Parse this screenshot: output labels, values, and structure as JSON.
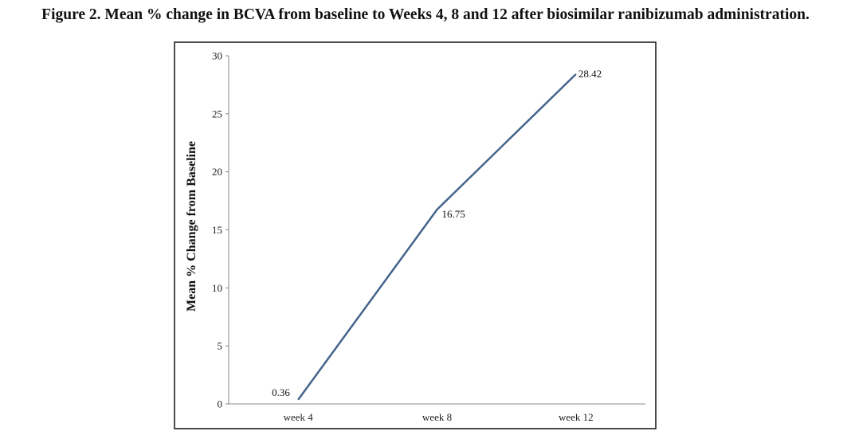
{
  "caption": "Figure 2. Mean % change in BCVA from baseline to Weeks 4, 8 and 12 after biosimilar ranibizumab administration.",
  "chart_data": {
    "type": "line",
    "categories": [
      "week 4",
      "week 8",
      "week 12"
    ],
    "series": [
      {
        "values": [
          0.36,
          16.75,
          28.42
        ],
        "color": "#44648c"
      }
    ],
    "data_labels": [
      "0.36",
      "16.75",
      "28.42"
    ],
    "title": "",
    "xlabel": "",
    "ylabel": "Mean % Change from Baseline",
    "ylim": [
      0,
      30
    ],
    "yticks": [
      0,
      5,
      10,
      15,
      20,
      25,
      30
    ],
    "grid": false,
    "legend": "none"
  }
}
